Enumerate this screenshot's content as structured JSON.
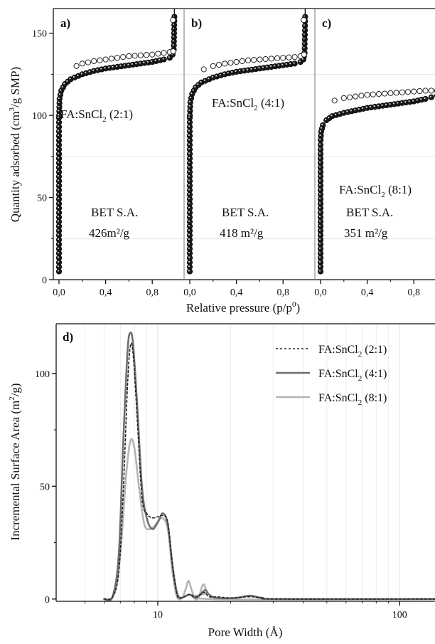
{
  "chart_data": [
    {
      "type": "scatter",
      "panels": [
        {
          "label": "a)",
          "sample_label": {
            "main": "FA:SnCl",
            "sub": "2",
            "tail": " (2:1)"
          },
          "bet_title": "BET S.A.",
          "bet_value": "426m²/g",
          "adsorption": [
            [
              0.0,
              5
            ],
            [
              0.0,
              50
            ],
            [
              0.001,
              100
            ],
            [
              0.005,
              110
            ],
            [
              0.02,
              115
            ],
            [
              0.05,
              119
            ],
            [
              0.1,
              122
            ],
            [
              0.2,
              125
            ],
            [
              0.3,
              127
            ],
            [
              0.4,
              128.5
            ],
            [
              0.5,
              129.5
            ],
            [
              0.6,
              130.5
            ],
            [
              0.7,
              131.5
            ],
            [
              0.8,
              132.5
            ],
            [
              0.9,
              134
            ],
            [
              0.95,
              135
            ],
            [
              0.975,
              137
            ],
            [
              0.985,
              140
            ],
            [
              0.99,
              160
            ]
          ],
          "desorption": [
            [
              0.15,
              130
            ],
            [
              0.2,
              131.5
            ],
            [
              0.3,
              133
            ],
            [
              0.4,
              134
            ],
            [
              0.5,
              135
            ],
            [
              0.6,
              136
            ],
            [
              0.7,
              136.5
            ],
            [
              0.8,
              137
            ],
            [
              0.9,
              138
            ],
            [
              0.95,
              138.5
            ],
            [
              0.98,
              139
            ]
          ]
        },
        {
          "label": "b)",
          "sample_label": {
            "main": "FA:SnCl",
            "sub": "2",
            "tail": " (4:1)"
          },
          "bet_title": "BET S.A.",
          "bet_value": "418 m²/g",
          "adsorption": [
            [
              0.0,
              5
            ],
            [
              0.0,
              50
            ],
            [
              0.001,
              100
            ],
            [
              0.005,
              108
            ],
            [
              0.02,
              113
            ],
            [
              0.05,
              117
            ],
            [
              0.1,
              120
            ],
            [
              0.2,
              123
            ],
            [
              0.3,
              125
            ],
            [
              0.4,
              126.5
            ],
            [
              0.5,
              127.5
            ],
            [
              0.6,
              128.5
            ],
            [
              0.7,
              129.5
            ],
            [
              0.8,
              130.5
            ],
            [
              0.9,
              131.5
            ],
            [
              0.95,
              132.5
            ],
            [
              0.975,
              134
            ],
            [
              0.985,
              138
            ],
            [
              0.99,
              160
            ]
          ],
          "desorption": [
            [
              0.12,
              128
            ],
            [
              0.2,
              130
            ],
            [
              0.3,
              131.5
            ],
            [
              0.4,
              132.5
            ],
            [
              0.5,
              133.5
            ],
            [
              0.6,
              134
            ],
            [
              0.7,
              134.5
            ],
            [
              0.8,
              135
            ],
            [
              0.9,
              135.5
            ],
            [
              0.95,
              136
            ],
            [
              0.98,
              137
            ]
          ]
        },
        {
          "label": "c)",
          "sample_label": {
            "main": "FA:SnCl",
            "sub": "2",
            "tail": " (8:1)"
          },
          "bet_title": "BET S.A.",
          "bet_value": "351 m²/g",
          "adsorption": [
            [
              0.0,
              5
            ],
            [
              0.0,
              50
            ],
            [
              0.001,
              85
            ],
            [
              0.005,
              90
            ],
            [
              0.02,
              94
            ],
            [
              0.05,
              97
            ],
            [
              0.1,
              99.5
            ],
            [
              0.2,
              101.5
            ],
            [
              0.3,
              103
            ],
            [
              0.4,
              104.5
            ],
            [
              0.5,
              105.5
            ],
            [
              0.6,
              106.5
            ],
            [
              0.7,
              107.5
            ],
            [
              0.8,
              108.5
            ],
            [
              0.9,
              110
            ],
            [
              0.95,
              111
            ],
            [
              1.0,
              112
            ]
          ],
          "desorption": [
            [
              0.12,
              109
            ],
            [
              0.2,
              110.5
            ],
            [
              0.3,
              111.5
            ],
            [
              0.4,
              112.5
            ],
            [
              0.5,
              113
            ],
            [
              0.6,
              113.5
            ],
            [
              0.7,
              114
            ],
            [
              0.8,
              114.5
            ],
            [
              0.9,
              115
            ],
            [
              0.95,
              115
            ],
            [
              1.0,
              115
            ]
          ]
        }
      ],
      "xlim": [
        0,
        1
      ],
      "ylim": [
        0,
        165
      ],
      "x_ticks": [
        "0,0",
        "0,4",
        "0,8"
      ],
      "y_ticks": [
        0,
        50,
        100,
        150
      ],
      "xlabel": "Relative pressure (p/p",
      "xlabel_sup": "0",
      "xlabel_end": ")",
      "ylabel": "Quantity adsorbed (cm",
      "ylabel_sup": "3",
      "ylabel_end": "/g SMP)"
    },
    {
      "type": "line",
      "label": "d)",
      "xlabel": "Pore Width (Å)",
      "ylabel": "Incremental Surface Area (m",
      "ylabel_sup": "2",
      "ylabel_end": "/g)",
      "x_scale": "log",
      "xlim": [
        3.8,
        140
      ],
      "ylim": [
        -1,
        122
      ],
      "x_ticks": [
        10,
        100
      ],
      "y_ticks": [
        0,
        50,
        100
      ],
      "series": [
        {
          "name": {
            "main": "FA:SnCl",
            "sub": "2",
            "tail": " (2:1)"
          },
          "style": "dotted",
          "color": "#222222",
          "points": [
            [
              6.0,
              0
            ],
            [
              6.5,
              1
            ],
            [
              6.9,
              12
            ],
            [
              7.2,
              48
            ],
            [
              7.5,
              95
            ],
            [
              7.7,
              112
            ],
            [
              7.9,
              109
            ],
            [
              8.2,
              82
            ],
            [
              8.6,
              45
            ],
            [
              9.0,
              38
            ],
            [
              9.5,
              36
            ],
            [
              10.0,
              36.5
            ],
            [
              10.5,
              37
            ],
            [
              11.0,
              34
            ],
            [
              11.5,
              15
            ],
            [
              12.0,
              2
            ],
            [
              12.5,
              0.5
            ],
            [
              13.5,
              2
            ],
            [
              14.5,
              1
            ],
            [
              15.5,
              3
            ],
            [
              16.3,
              1
            ],
            [
              17.5,
              1
            ],
            [
              20,
              0.5
            ],
            [
              24,
              1
            ],
            [
              27,
              0.5
            ],
            [
              32,
              0
            ],
            [
              140,
              0
            ]
          ]
        },
        {
          "name": {
            "main": "FA:SnCl",
            "sub": "2",
            "tail": " (4:1)"
          },
          "style": "solid",
          "color": "#6e6e6e",
          "points": [
            [
              6.0,
              0
            ],
            [
              6.5,
              1
            ],
            [
              6.9,
              20
            ],
            [
              7.2,
              70
            ],
            [
              7.5,
              110
            ],
            [
              7.7,
              118
            ],
            [
              7.9,
              113
            ],
            [
              8.2,
              88
            ],
            [
              8.6,
              50
            ],
            [
              9.0,
              36
            ],
            [
              9.5,
              31
            ],
            [
              10.0,
              34
            ],
            [
              10.5,
              38
            ],
            [
              11.0,
              33
            ],
            [
              11.5,
              15
            ],
            [
              12.0,
              3
            ],
            [
              12.5,
              0.5
            ],
            [
              13.5,
              2
            ],
            [
              14.3,
              0.5
            ],
            [
              15.0,
              2
            ],
            [
              15.7,
              4
            ],
            [
              16.3,
              2
            ],
            [
              17.5,
              0.5
            ],
            [
              21,
              0.5
            ],
            [
              24,
              1.5
            ],
            [
              27,
              0.5
            ],
            [
              32,
              0
            ],
            [
              140,
              0
            ]
          ]
        },
        {
          "name": {
            "main": "FA:SnCl",
            "sub": "2",
            "tail": " (8:1)"
          },
          "style": "solid",
          "color": "#b4b4b4",
          "points": [
            [
              6.0,
              0
            ],
            [
              6.6,
              2
            ],
            [
              7.0,
              20
            ],
            [
              7.4,
              55
            ],
            [
              7.7,
              70
            ],
            [
              8.0,
              67
            ],
            [
              8.4,
              48
            ],
            [
              8.8,
              33
            ],
            [
              9.3,
              31
            ],
            [
              9.8,
              33
            ],
            [
              10.4,
              36
            ],
            [
              11.0,
              31
            ],
            [
              11.5,
              12
            ],
            [
              12.0,
              1
            ],
            [
              12.6,
              0.5
            ],
            [
              13.0,
              4
            ],
            [
              13.4,
              8
            ],
            [
              13.8,
              4
            ],
            [
              14.3,
              0
            ],
            [
              14.8,
              1
            ],
            [
              15.4,
              6.5
            ],
            [
              16.0,
              3
            ],
            [
              16.5,
              0
            ],
            [
              140,
              0
            ]
          ]
        }
      ]
    }
  ]
}
